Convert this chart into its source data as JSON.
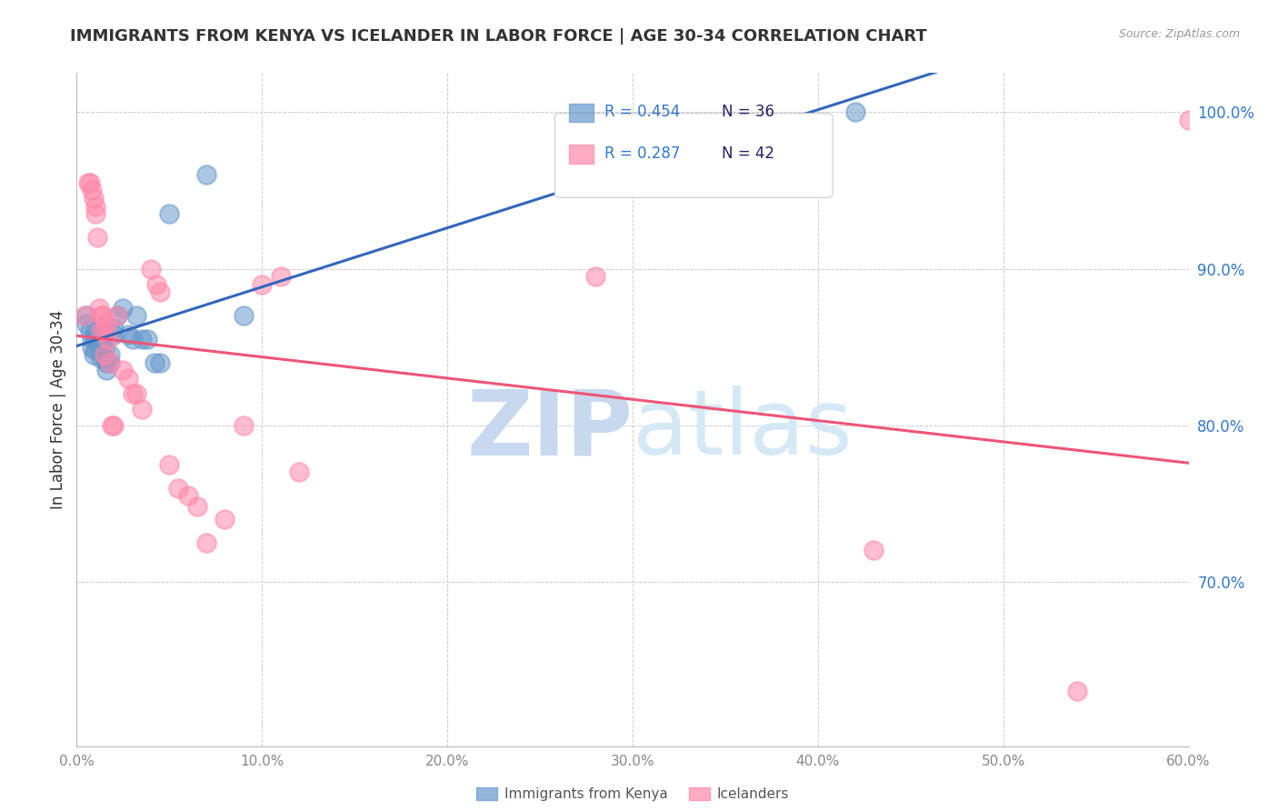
{
  "title": "IMMIGRANTS FROM KENYA VS ICELANDER IN LABOR FORCE | AGE 30-34 CORRELATION CHART",
  "source": "Source: ZipAtlas.com",
  "ylabel": "In Labor Force | Age 30-34",
  "xlim": [
    0.0,
    0.6
  ],
  "ylim": [
    0.595,
    1.025
  ],
  "yticks": [
    0.7,
    0.8,
    0.9,
    1.0
  ],
  "ytick_labels": [
    "70.0%",
    "80.0%",
    "90.0%",
    "100.0%"
  ],
  "xticks": [
    0.0,
    0.1,
    0.2,
    0.3,
    0.4,
    0.5,
    0.6
  ],
  "xtick_labels": [
    "0.0%",
    "10.0%",
    "20.0%",
    "30.0%",
    "40.0%",
    "50.0%",
    "60.0%"
  ],
  "kenya_color": "#6699cc",
  "iceland_color": "#ff88aa",
  "kenya_alpha": 0.55,
  "iceland_alpha": 0.55,
  "kenya_line_color": "#3366bb",
  "iceland_line_color": "#ee5577",
  "legend_R_color": "#3377cc",
  "legend_N_color": "#223388",
  "background_color": "#ffffff",
  "title_color": "#333333",
  "ylabel_color": "#333333",
  "ytick_color": "#3377cc",
  "xtick_color": "#888888",
  "grid_color": "#cccccc",
  "kenya_x": [
    0.005,
    0.005,
    0.007,
    0.008,
    0.008,
    0.009,
    0.01,
    0.01,
    0.01,
    0.012,
    0.012,
    0.013,
    0.013,
    0.014,
    0.014,
    0.015,
    0.015,
    0.016,
    0.016,
    0.018,
    0.018,
    0.02,
    0.02,
    0.022,
    0.025,
    0.028,
    0.03,
    0.032,
    0.035,
    0.038,
    0.042,
    0.045,
    0.05,
    0.07,
    0.09,
    0.42
  ],
  "kenya_y": [
    0.87,
    0.865,
    0.86,
    0.855,
    0.85,
    0.845,
    0.86,
    0.855,
    0.848,
    0.858,
    0.852,
    0.848,
    0.843,
    0.862,
    0.855,
    0.848,
    0.843,
    0.84,
    0.835,
    0.845,
    0.84,
    0.862,
    0.858,
    0.87,
    0.875,
    0.858,
    0.855,
    0.87,
    0.855,
    0.855,
    0.84,
    0.84,
    0.935,
    0.96,
    0.87,
    1.0
  ],
  "iceland_x": [
    0.004,
    0.006,
    0.007,
    0.008,
    0.009,
    0.01,
    0.01,
    0.011,
    0.012,
    0.013,
    0.013,
    0.014,
    0.015,
    0.015,
    0.016,
    0.017,
    0.018,
    0.019,
    0.02,
    0.022,
    0.025,
    0.028,
    0.03,
    0.032,
    0.035,
    0.04,
    0.043,
    0.045,
    0.05,
    0.055,
    0.06,
    0.065,
    0.07,
    0.08,
    0.09,
    0.1,
    0.11,
    0.12,
    0.28,
    0.43,
    0.54,
    0.6
  ],
  "iceland_y": [
    0.87,
    0.955,
    0.955,
    0.95,
    0.945,
    0.94,
    0.935,
    0.92,
    0.875,
    0.87,
    0.86,
    0.87,
    0.86,
    0.845,
    0.865,
    0.855,
    0.84,
    0.8,
    0.8,
    0.87,
    0.835,
    0.83,
    0.82,
    0.82,
    0.81,
    0.9,
    0.89,
    0.885,
    0.775,
    0.76,
    0.755,
    0.748,
    0.725,
    0.74,
    0.8,
    0.89,
    0.895,
    0.77,
    0.895,
    0.72,
    0.63,
    0.995
  ]
}
